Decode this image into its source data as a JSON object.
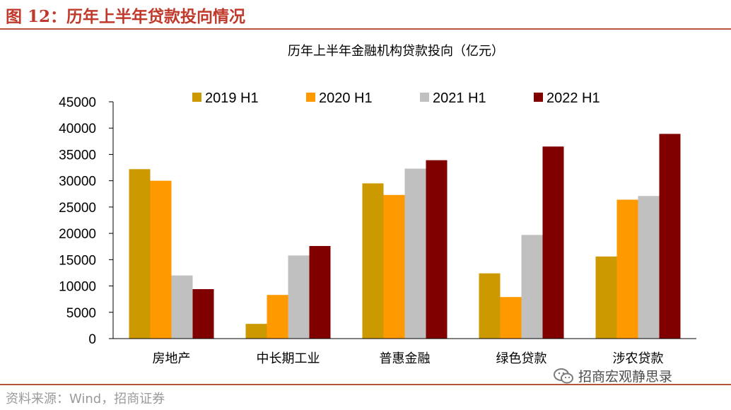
{
  "figure": {
    "title": "图 12：历年上半年贷款投向情况",
    "source": "资料来源：Wind，招商证券",
    "watermark": "招商宏观静思录",
    "accent_color": "#b5533b",
    "title_color": "#c0392b"
  },
  "chart_data": {
    "type": "bar",
    "title": "历年上半年金融机构贷款投向（亿元）",
    "xlabel": "",
    "ylabel": "",
    "categories": [
      "房地产",
      "中长期工业",
      "普惠金融",
      "绿色贷款",
      "涉农贷款"
    ],
    "series": [
      {
        "name": "2019 H1",
        "color": "#cc9900",
        "values": [
          32200,
          2800,
          29500,
          12400,
          15600
        ]
      },
      {
        "name": "2020 H1",
        "color": "#ff9900",
        "values": [
          30000,
          8300,
          27300,
          7900,
          26400
        ]
      },
      {
        "name": "2021 H1",
        "color": "#c0c0c0",
        "values": [
          12000,
          15800,
          32300,
          19700,
          27100
        ]
      },
      {
        "name": "2022 H1",
        "color": "#800000",
        "values": [
          9400,
          17600,
          33900,
          36500,
          38900
        ]
      }
    ],
    "ylim": [
      0,
      45000
    ],
    "yticks": [
      "0",
      "5000",
      "10000",
      "15000",
      "20000",
      "25000",
      "30000",
      "35000",
      "40000",
      "45000"
    ],
    "grid": false,
    "legend_position": "top"
  }
}
